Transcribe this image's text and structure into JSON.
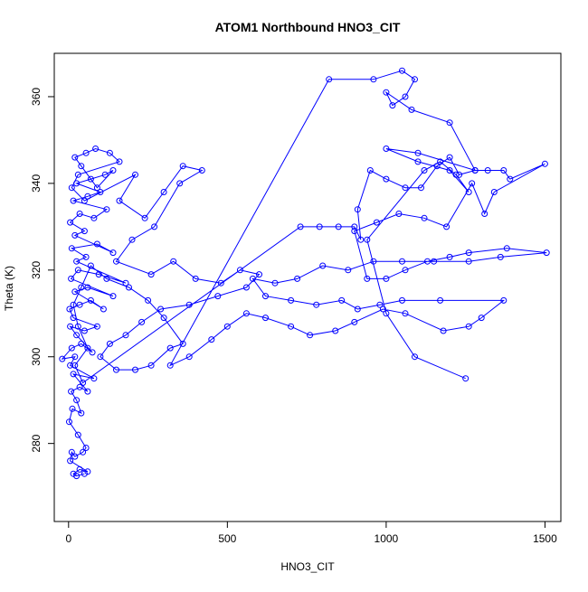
{
  "chart_data": {
    "type": "line",
    "title": "ATOM1 Northbound HNO3_CIT",
    "xlabel": "HNO3_CIT",
    "ylabel": "Theta (K)",
    "xlim": [
      -45,
      1550
    ],
    "ylim": [
      262,
      370
    ],
    "xticks": [
      0,
      500,
      1000,
      1500
    ],
    "yticks": [
      280,
      300,
      320,
      340,
      360
    ],
    "xtick_labels": [
      "0",
      "500",
      "1000",
      "1500"
    ],
    "ytick_labels": [
      "280",
      "300",
      "320",
      "340",
      "360"
    ],
    "grid": false,
    "legend": "none",
    "marker": "open-circle",
    "colors": {
      "series": "#0000ff",
      "axis": "#000000",
      "background": "#ffffff"
    },
    "series": [
      {
        "points": [
          [
            50,
            273
          ],
          [
            25,
            272.5
          ],
          [
            15,
            273
          ],
          [
            35,
            274
          ],
          [
            60,
            273.5
          ],
          [
            5,
            276
          ],
          [
            10,
            278
          ],
          [
            20,
            277
          ],
          [
            45,
            278
          ],
          [
            55,
            279
          ],
          [
            30,
            282
          ],
          [
            2,
            285
          ],
          [
            12,
            288
          ],
          [
            40,
            287
          ],
          [
            25,
            290
          ],
          [
            8,
            292
          ],
          [
            35,
            293
          ],
          [
            60,
            292
          ],
          [
            15,
            296
          ],
          [
            80,
            295
          ],
          [
            5,
            298
          ],
          [
            20,
            300
          ],
          [
            -20,
            299.5
          ],
          [
            10,
            302
          ],
          [
            40,
            303
          ],
          [
            75,
            301
          ],
          [
            25,
            305
          ],
          [
            5,
            307
          ],
          [
            50,
            306
          ],
          [
            90,
            307
          ],
          [
            15,
            309
          ],
          [
            3,
            311
          ],
          [
            35,
            312
          ],
          [
            70,
            313
          ],
          [
            110,
            311
          ],
          [
            20,
            315
          ],
          [
            60,
            316
          ],
          [
            140,
            314
          ],
          [
            8,
            318
          ],
          [
            30,
            320
          ],
          [
            95,
            319
          ],
          [
            180,
            317
          ],
          [
            25,
            322
          ],
          [
            55,
            323
          ],
          [
            10,
            325
          ],
          [
            90,
            326
          ],
          [
            140,
            324
          ],
          [
            20,
            328
          ],
          [
            50,
            329
          ],
          [
            5,
            331
          ],
          [
            35,
            333
          ],
          [
            80,
            332
          ],
          [
            120,
            334
          ],
          [
            15,
            336
          ],
          [
            60,
            337
          ],
          [
            100,
            338
          ],
          [
            25,
            340
          ],
          [
            70,
            341
          ],
          [
            115,
            342
          ],
          [
            140,
            343
          ],
          [
            90,
            339
          ],
          [
            40,
            344
          ],
          [
            20,
            346
          ],
          [
            55,
            347
          ],
          [
            85,
            348
          ],
          [
            130,
            347
          ],
          [
            160,
            345
          ],
          [
            30,
            342
          ],
          [
            10,
            339
          ],
          [
            50,
            336
          ],
          [
            210,
            342
          ],
          [
            160,
            336
          ],
          [
            240,
            332
          ],
          [
            300,
            338
          ],
          [
            360,
            344
          ],
          [
            420,
            343
          ],
          [
            350,
            340
          ],
          [
            270,
            330
          ],
          [
            200,
            327
          ],
          [
            150,
            322
          ],
          [
            260,
            319
          ],
          [
            330,
            322
          ],
          [
            400,
            318
          ],
          [
            480,
            317
          ],
          [
            540,
            320
          ],
          [
            600,
            319
          ],
          [
            560,
            316
          ],
          [
            470,
            314
          ],
          [
            380,
            312
          ],
          [
            290,
            311
          ],
          [
            230,
            308
          ],
          [
            180,
            305
          ],
          [
            130,
            303
          ],
          [
            100,
            300
          ],
          [
            150,
            297
          ],
          [
            210,
            297
          ],
          [
            260,
            298
          ],
          [
            320,
            302
          ],
          [
            360,
            303
          ],
          [
            300,
            309
          ],
          [
            250,
            313
          ],
          [
            190,
            316
          ],
          [
            120,
            318
          ],
          [
            70,
            321
          ],
          [
            40,
            316
          ],
          [
            15,
            312
          ],
          [
            30,
            307
          ],
          [
            60,
            302
          ],
          [
            20,
            298
          ],
          [
            45,
            294
          ],
          [
            730,
            330
          ],
          [
            790,
            330
          ],
          [
            850,
            330
          ],
          [
            900,
            330
          ],
          [
            920,
            327
          ],
          [
            910,
            334
          ],
          [
            950,
            343
          ],
          [
            1000,
            341
          ],
          [
            1060,
            339
          ],
          [
            1110,
            339
          ],
          [
            1160,
            344
          ],
          [
            1200,
            346
          ],
          [
            1230,
            342
          ],
          [
            1280,
            343
          ],
          [
            1320,
            343
          ],
          [
            1370,
            343
          ],
          [
            1390,
            341
          ],
          [
            1500,
            344.5
          ],
          [
            1340,
            338
          ],
          [
            1310,
            333
          ],
          [
            1270,
            340
          ],
          [
            1190,
            330
          ],
          [
            1120,
            332
          ],
          [
            1040,
            333
          ],
          [
            970,
            331
          ],
          [
            900,
            329
          ],
          [
            940,
            318
          ],
          [
            1000,
            318
          ],
          [
            1060,
            320
          ],
          [
            1130,
            322
          ],
          [
            1200,
            323
          ],
          [
            1260,
            324
          ],
          [
            1380,
            325
          ],
          [
            1505,
            324
          ],
          [
            1360,
            323
          ],
          [
            1260,
            322
          ],
          [
            1150,
            322
          ],
          [
            1050,
            322
          ],
          [
            960,
            322
          ],
          [
            880,
            320
          ],
          [
            800,
            321
          ],
          [
            720,
            318
          ],
          [
            650,
            317
          ],
          [
            580,
            318
          ],
          [
            620,
            314
          ],
          [
            700,
            313
          ],
          [
            780,
            312
          ],
          [
            860,
            313
          ],
          [
            910,
            311
          ],
          [
            980,
            312
          ],
          [
            1050,
            313
          ],
          [
            1170,
            313
          ],
          [
            1370,
            313
          ],
          [
            1300,
            309
          ],
          [
            1260,
            307
          ],
          [
            1180,
            306
          ],
          [
            1060,
            310
          ],
          [
            990,
            311
          ],
          [
            900,
            308
          ],
          [
            840,
            306
          ],
          [
            760,
            305
          ],
          [
            700,
            307
          ],
          [
            620,
            309
          ],
          [
            560,
            310
          ],
          [
            500,
            307
          ],
          [
            450,
            304
          ],
          [
            380,
            300
          ],
          [
            320,
            298
          ],
          [
            820,
            364
          ],
          [
            960,
            364
          ],
          [
            1050,
            366
          ],
          [
            1090,
            364
          ],
          [
            1060,
            360
          ],
          [
            1020,
            358
          ],
          [
            1000,
            361
          ],
          [
            1080,
            357
          ],
          [
            1200,
            354
          ],
          [
            1280,
            343
          ],
          [
            1100,
            347
          ],
          [
            1000,
            348
          ],
          [
            1100,
            345
          ],
          [
            1200,
            343
          ],
          [
            1260,
            338
          ],
          [
            1220,
            342
          ],
          [
            1170,
            345
          ],
          [
            1120,
            343
          ],
          [
            940,
            327
          ],
          [
            1000,
            310
          ],
          [
            1090,
            300
          ],
          [
            1250,
            295
          ]
        ]
      }
    ]
  }
}
